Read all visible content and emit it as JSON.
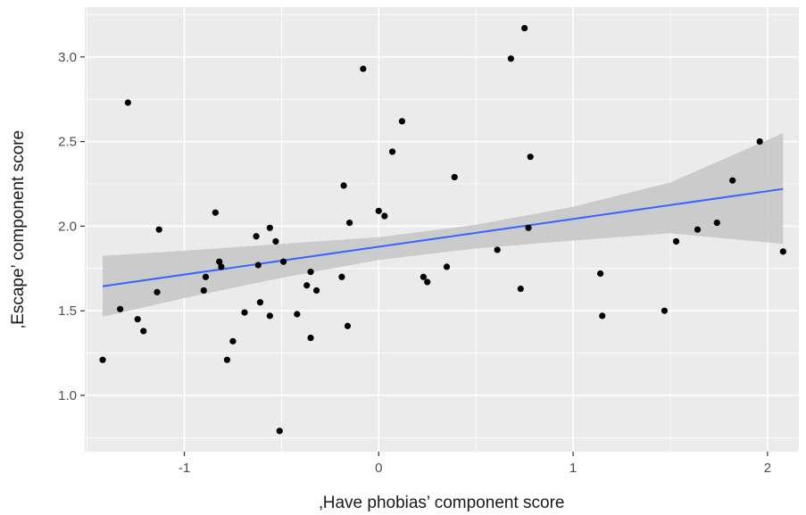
{
  "chart_data": {
    "type": "scatter",
    "title": "",
    "xlabel": "‚Have phobias’ component score",
    "ylabel": "‚Escape’ component score",
    "xlim": [
      -1.52,
      2.12
    ],
    "ylim": [
      0.72,
      3.25
    ],
    "x_ticks": [
      -1,
      0,
      1,
      2
    ],
    "x_tick_labels": [
      "-1",
      "0",
      "1",
      "2"
    ],
    "y_ticks": [
      1.0,
      1.5,
      2.0,
      2.5,
      3.0
    ],
    "y_tick_labels": [
      "1.0",
      "1.5",
      "2.0",
      "2.5",
      "3.0"
    ],
    "grid": true,
    "background": "#ebebeb",
    "points": [
      {
        "x": -1.42,
        "y": 1.21
      },
      {
        "x": -1.33,
        "y": 1.51
      },
      {
        "x": -1.29,
        "y": 2.73
      },
      {
        "x": -1.24,
        "y": 1.45
      },
      {
        "x": -1.21,
        "y": 1.38
      },
      {
        "x": -1.14,
        "y": 1.61
      },
      {
        "x": -1.13,
        "y": 1.98
      },
      {
        "x": -0.9,
        "y": 1.62
      },
      {
        "x": -0.89,
        "y": 1.7
      },
      {
        "x": -0.84,
        "y": 2.08
      },
      {
        "x": -0.82,
        "y": 1.79
      },
      {
        "x": -0.81,
        "y": 1.76
      },
      {
        "x": -0.78,
        "y": 1.21
      },
      {
        "x": -0.75,
        "y": 1.32
      },
      {
        "x": -0.69,
        "y": 1.49
      },
      {
        "x": -0.63,
        "y": 1.94
      },
      {
        "x": -0.62,
        "y": 1.77
      },
      {
        "x": -0.61,
        "y": 1.55
      },
      {
        "x": -0.56,
        "y": 1.99
      },
      {
        "x": -0.56,
        "y": 1.47
      },
      {
        "x": -0.53,
        "y": 1.91
      },
      {
        "x": -0.51,
        "y": 0.79
      },
      {
        "x": -0.49,
        "y": 1.79
      },
      {
        "x": -0.42,
        "y": 1.48
      },
      {
        "x": -0.37,
        "y": 1.65
      },
      {
        "x": -0.35,
        "y": 1.73
      },
      {
        "x": -0.35,
        "y": 1.34
      },
      {
        "x": -0.32,
        "y": 1.62
      },
      {
        "x": -0.19,
        "y": 1.7
      },
      {
        "x": -0.18,
        "y": 2.24
      },
      {
        "x": -0.16,
        "y": 1.41
      },
      {
        "x": -0.15,
        "y": 2.02
      },
      {
        "x": -0.08,
        "y": 2.93
      },
      {
        "x": 0.0,
        "y": 2.09
      },
      {
        "x": 0.03,
        "y": 2.06
      },
      {
        "x": 0.07,
        "y": 2.44
      },
      {
        "x": 0.12,
        "y": 2.62
      },
      {
        "x": 0.23,
        "y": 1.7
      },
      {
        "x": 0.25,
        "y": 1.67
      },
      {
        "x": 0.35,
        "y": 1.76
      },
      {
        "x": 0.39,
        "y": 2.29
      },
      {
        "x": 0.61,
        "y": 1.86
      },
      {
        "x": 0.68,
        "y": 2.99
      },
      {
        "x": 0.73,
        "y": 1.63
      },
      {
        "x": 0.75,
        "y": 3.17
      },
      {
        "x": 0.77,
        "y": 1.99
      },
      {
        "x": 0.78,
        "y": 2.41
      },
      {
        "x": 1.14,
        "y": 1.72
      },
      {
        "x": 1.15,
        "y": 1.47
      },
      {
        "x": 1.47,
        "y": 1.5
      },
      {
        "x": 1.53,
        "y": 1.91
      },
      {
        "x": 1.64,
        "y": 1.98
      },
      {
        "x": 1.74,
        "y": 2.02
      },
      {
        "x": 1.82,
        "y": 2.27
      },
      {
        "x": 1.96,
        "y": 2.5
      },
      {
        "x": 2.08,
        "y": 1.85
      }
    ],
    "trend": {
      "x": [
        -1.42,
        2.08
      ],
      "y": [
        1.645,
        2.22
      ],
      "color": "#3366ff"
    },
    "confidence_band": {
      "x": [
        -1.42,
        -1.0,
        -0.5,
        0.0,
        0.5,
        1.0,
        1.5,
        2.08
      ],
      "lower": [
        1.465,
        1.575,
        1.695,
        1.8,
        1.868,
        1.915,
        1.958,
        1.895
      ],
      "upper": [
        1.825,
        1.855,
        1.895,
        1.935,
        2.008,
        2.115,
        2.258,
        2.55
      ],
      "color": "#c8c8c8"
    },
    "point_color": "#000000"
  }
}
